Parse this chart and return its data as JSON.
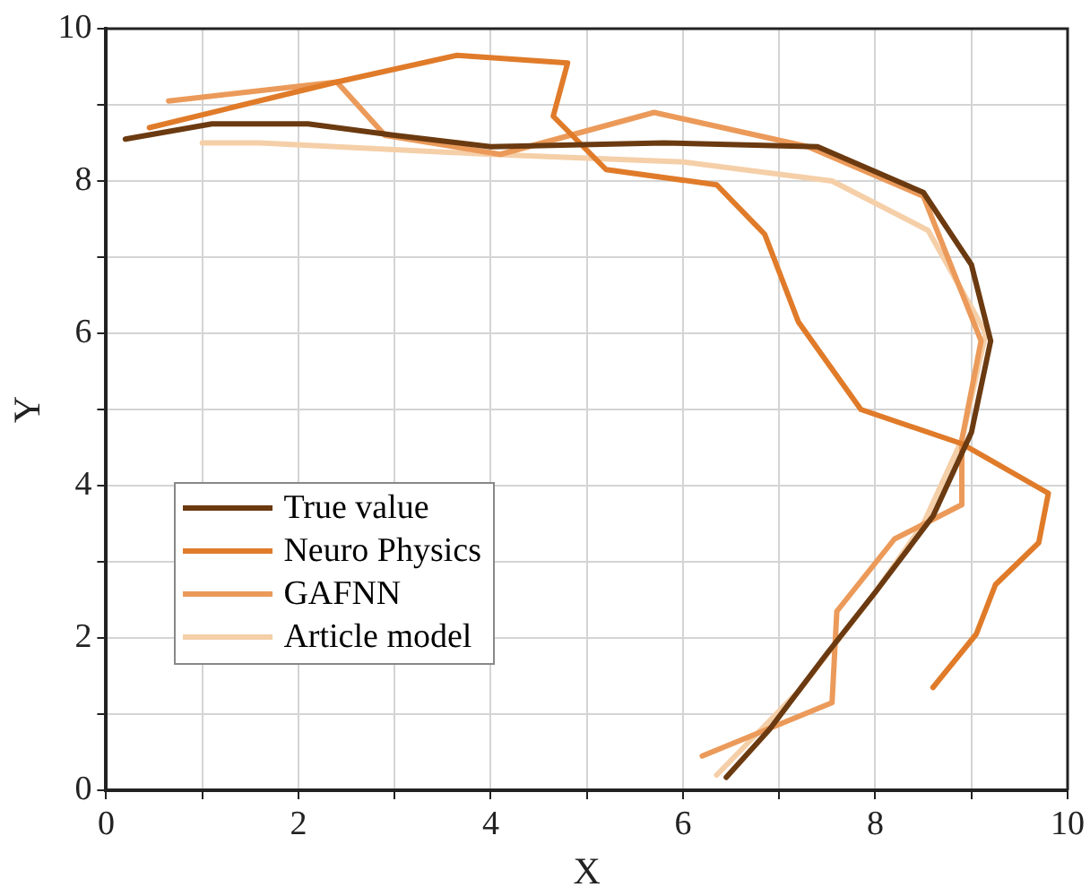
{
  "chart_data": {
    "type": "line",
    "xlabel": "X",
    "ylabel": "Y",
    "xlim": [
      0,
      10
    ],
    "ylim": [
      0,
      10
    ],
    "xticks": [
      0,
      {
        "value": 1,
        "label": null
      },
      2,
      {
        "value": 3,
        "label": null
      },
      4,
      {
        "value": 5,
        "label": null
      },
      6,
      {
        "value": 7,
        "label": null
      },
      8,
      {
        "value": 9,
        "label": null
      },
      10
    ],
    "yticks": [
      0,
      {
        "value": 1,
        "label": null
      },
      2,
      {
        "value": 3,
        "label": null
      },
      4,
      {
        "value": 5,
        "label": null
      },
      6,
      {
        "value": 7,
        "label": null
      },
      8,
      {
        "value": 9,
        "label": null
      },
      10
    ],
    "grid": true,
    "legend": "left",
    "marker": "none",
    "line_style": "solid",
    "series": [
      {
        "name": "True value",
        "color": "#6b3a10",
        "x": [
          0.2,
          1.1,
          2.1,
          3.0,
          4.0,
          5.8,
          7.4,
          8.5,
          9.0,
          9.2,
          9.0,
          8.6,
          8.0,
          7.5,
          6.9,
          6.45
        ],
        "values": [
          8.55,
          8.75,
          8.75,
          8.6,
          8.45,
          8.5,
          8.45,
          7.85,
          6.9,
          5.9,
          4.7,
          3.6,
          2.6,
          1.8,
          0.8,
          0.17
        ]
      },
      {
        "name": "Neuro Physics",
        "color": "#e07b2a",
        "x": [
          0.45,
          2.4,
          3.65,
          4.8,
          4.65,
          5.2,
          6.35,
          6.85,
          7.2,
          7.85,
          8.9,
          9.8,
          9.7,
          9.25,
          9.05,
          8.6
        ],
        "values": [
          8.7,
          9.3,
          9.65,
          9.55,
          8.85,
          8.15,
          7.95,
          7.3,
          6.15,
          5.0,
          4.55,
          3.9,
          3.25,
          2.7,
          2.05,
          1.35
        ]
      },
      {
        "name": "GAFNN",
        "color": "#eb9a5a",
        "x": [
          0.65,
          2.4,
          2.9,
          4.1,
          5.7,
          7.3,
          8.5,
          9.1,
          8.9,
          8.9,
          8.2,
          7.6,
          7.55,
          6.2
        ],
        "values": [
          9.05,
          9.3,
          8.6,
          8.35,
          8.9,
          8.45,
          7.8,
          5.9,
          4.6,
          3.75,
          3.3,
          2.35,
          1.15,
          0.45
        ]
      },
      {
        "name": "Article model",
        "color": "#f5cfa8",
        "x": [
          1.0,
          1.6,
          4.0,
          6.0,
          7.55,
          8.55,
          9.15,
          8.9,
          8.5,
          8.0,
          7.2,
          6.35
        ],
        "values": [
          8.5,
          8.5,
          8.35,
          8.25,
          8.0,
          7.35,
          6.0,
          4.6,
          3.5,
          2.6,
          1.3,
          0.2
        ]
      }
    ]
  }
}
